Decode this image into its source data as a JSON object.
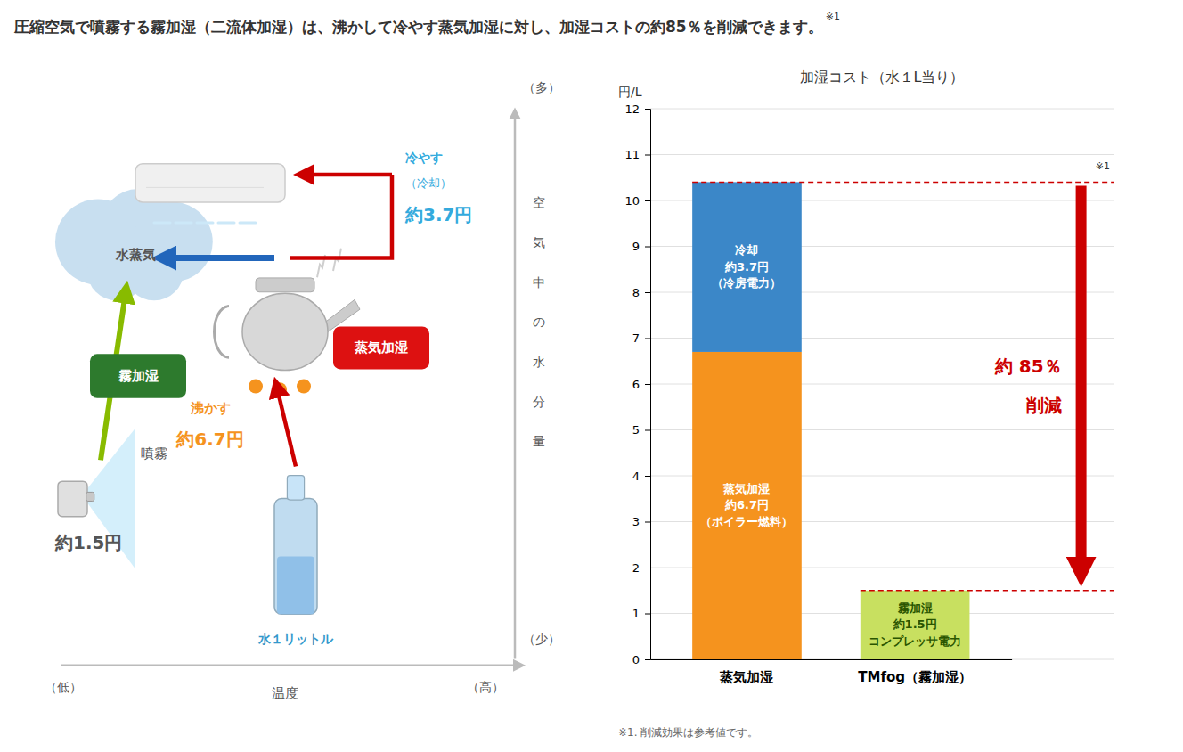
{
  "chart_data": [
    {
      "type": "bar",
      "stacked": true,
      "title": "圧縮空気で噴霧する霧加湿（二流体加湿）は、沸かして冷やす蒸気加湿に対し、加湿コストの約85％を削減できます。",
      "subtitle": "加湿コスト（水１L当り）",
      "ylabel": "円/L",
      "categories": [
        "蒸気加湿",
        "TMfog（霧加湿）"
      ],
      "series": [
        {
          "color": "#F5931E",
          "values": [
            6.7,
            null
          ],
          "value_labels": [
            "蒸気加湿\n約6.7円\n（ボイラー燃料）",
            null
          ]
        },
        {
          "color": "#3B87C8",
          "values": [
            3.7,
            null
          ],
          "value_labels": [
            "冷却\n約3.7円\n（冷房電力）",
            null
          ]
        },
        {
          "color": "#C8E060",
          "values": [
            null,
            1.5
          ],
          "value_labels": [
            null,
            "霧加湿\n約1.5円\nコンプレッサ電力"
          ]
        }
      ],
      "ylim": [
        0,
        12
      ],
      "yticks": [
        0,
        1,
        2,
        3,
        4,
        5,
        6,
        7,
        8,
        9,
        10,
        11,
        12
      ],
      "grid": true,
      "data_labels": true,
      "annotations": [
        {
          "text": "約 85％\n削減",
          "y_from": 10.4,
          "y_to": 1.5,
          "color": "#CC0000"
        },
        {
          "text": "※1",
          "y": 10.4
        },
        {
          "text": "※1"
        },
        {
          "text": "※1. 削減効果は参考値です。"
        }
      ]
    },
    {
      "type": "diagram",
      "xlabel": "温度",
      "ylabel": "空気中の水分量",
      "annotations": [
        {
          "text": "（低）"
        },
        {
          "text": "（高）"
        },
        {
          "text": "（少）"
        },
        {
          "text": "（多）"
        },
        {
          "text": "水蒸気"
        },
        {
          "text": "冷やす",
          "color": "#33AADD"
        },
        {
          "text": "（冷却）",
          "color": "#33AADD"
        },
        {
          "text": "約3.7円",
          "color": "#33AADD"
        },
        {
          "text": "沸かす",
          "color": "#F5931E"
        },
        {
          "text": "約6.7円",
          "color": "#F5931E"
        },
        {
          "text": "水１リットル",
          "color": "#3399CC"
        },
        {
          "text": "噴霧"
        },
        {
          "text": "約1.5円"
        },
        {
          "text": "霧加湿",
          "color": "#2D7A2D"
        },
        {
          "text": "蒸気加湿",
          "color": "#DD1111"
        }
      ]
    }
  ]
}
